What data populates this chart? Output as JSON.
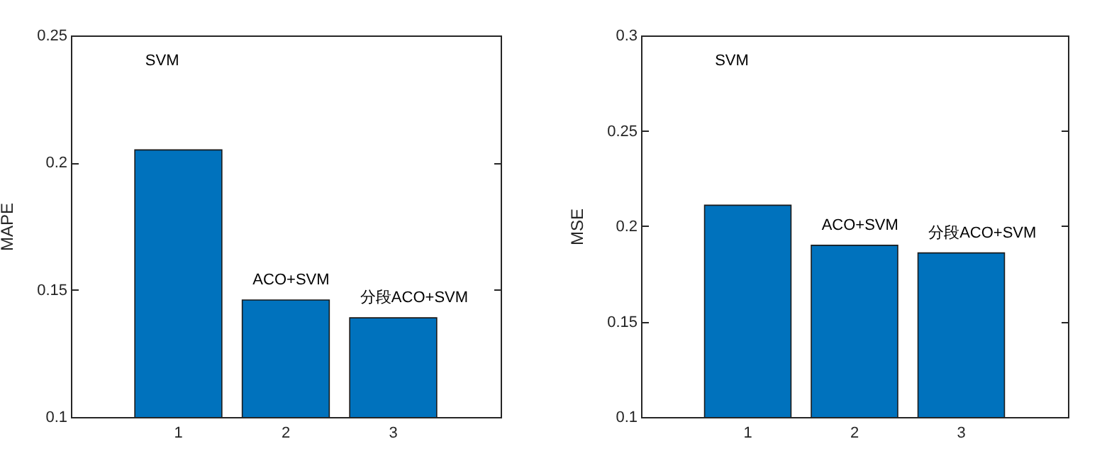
{
  "chart_data": [
    {
      "type": "bar",
      "ylabel": "MAPE",
      "categories": [
        "1",
        "2",
        "3"
      ],
      "values": [
        0.205,
        0.146,
        0.139
      ],
      "color": "#0072bd",
      "ylim": [
        0.1,
        0.25
      ],
      "yticks": [
        0.1,
        0.15,
        0.2,
        0.25
      ],
      "annotations": [
        "SVM",
        "ACO+SVM",
        "分段ACO+SVM"
      ]
    },
    {
      "type": "bar",
      "ylabel": "MSE",
      "categories": [
        "1",
        "2",
        "3"
      ],
      "values": [
        0.211,
        0.19,
        0.186
      ],
      "color": "#0072bd",
      "ylim": [
        0.1,
        0.3
      ],
      "yticks": [
        0.1,
        0.15,
        0.2,
        0.25,
        0.3
      ],
      "annotations": [
        "SVM",
        "ACO+SVM",
        "分段ACO+SVM"
      ]
    }
  ]
}
